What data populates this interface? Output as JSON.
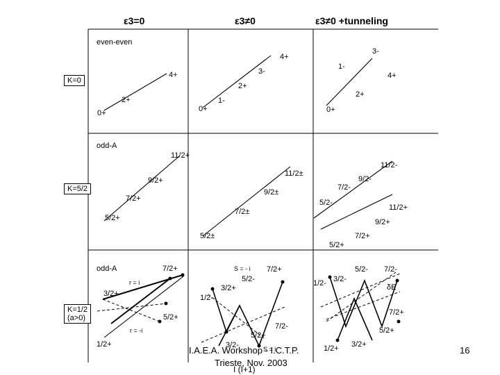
{
  "headers": [
    "ε3=0",
    "ε3≠0",
    "ε3≠0 +tunneling"
  ],
  "rows": {
    "even": {
      "title": "even-even",
      "k_label": "K=0",
      "col1": [
        "0+",
        "2+",
        "4+"
      ],
      "col2": [
        "0+",
        "2+",
        "4+",
        "1-",
        "3-"
      ],
      "col3": [
        "0+",
        "2+",
        "4+",
        "1-",
        "3-"
      ]
    },
    "odd": {
      "title": "odd-A",
      "k_label": "K=5/2",
      "col1": [
        "5/2+",
        "7/2+",
        "9/2+",
        "11/2+"
      ],
      "col2": [
        "5/2±",
        "7/2±",
        "9/2±",
        "11/2±"
      ],
      "col3": [
        "7/2+",
        "9/2+",
        "11/2+",
        "5/2-",
        "7/2-",
        "9/2-",
        "11/2-",
        "5/2+"
      ]
    },
    "bottom": {
      "title": "odd-A",
      "k_label_1": "K=1/2",
      "k_label_2": "(a>0)",
      "col1": [
        "1/2+",
        "3/2+",
        "5/2+",
        "7/2+"
      ],
      "r_plus": "r = i",
      "r_minus": "r = -i",
      "col2": [
        "S = - i",
        "7/2+",
        "5/2-",
        "3/2+",
        "1/2-",
        "7/2-",
        "5/2+",
        "3/2-"
      ],
      "col3": [
        "5/2-",
        "7/2-",
        "1/2-",
        "3/2-",
        "δE",
        "7/2+",
        "5/2+",
        "1/2+",
        "3/2+"
      ]
    }
  },
  "footer": {
    "line1": "I.A.E.A. Workshop - I.C.T.P.",
    "line2": "Trieste, Nov. 2003",
    "overlap1": "S = i",
    "overlap2": "I (I+1)"
  },
  "page_number": "16"
}
